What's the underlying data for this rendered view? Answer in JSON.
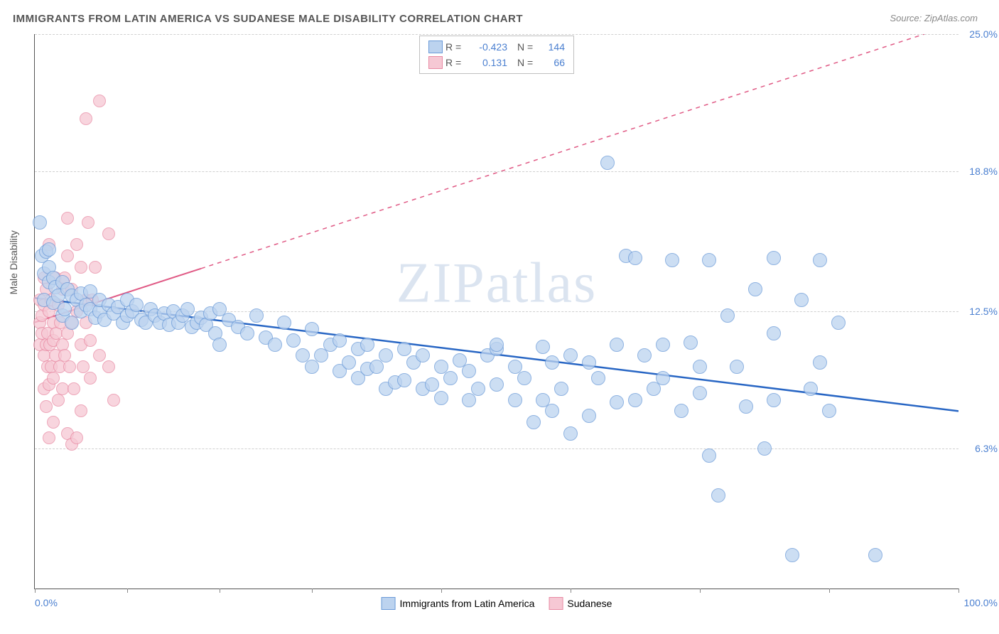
{
  "title": "IMMIGRANTS FROM LATIN AMERICA VS SUDANESE MALE DISABILITY CORRELATION CHART",
  "source": "Source: ZipAtlas.com",
  "watermark": "ZIPatlas",
  "ylabel": "Male Disability",
  "xaxis": {
    "min_label": "0.0%",
    "max_label": "100.0%",
    "min": 0,
    "max": 100,
    "tick_positions_pct": [
      0,
      10,
      20,
      30,
      44,
      58,
      72,
      86,
      100
    ]
  },
  "yaxis": {
    "min": 0,
    "max": 25,
    "ticks": [
      {
        "value": 6.3,
        "label": "6.3%"
      },
      {
        "value": 12.5,
        "label": "12.5%"
      },
      {
        "value": 18.8,
        "label": "18.8%"
      },
      {
        "value": 25.0,
        "label": "25.0%"
      }
    ]
  },
  "legend_box": {
    "rows": [
      {
        "swatch_fill": "#bcd3ef",
        "swatch_border": "#6a9ad8",
        "r_label": "R =",
        "r_value": "-0.423",
        "n_label": "N =",
        "n_value": "144"
      },
      {
        "swatch_fill": "#f6c8d4",
        "swatch_border": "#e88aa3",
        "r_label": "R =",
        "r_value": "0.131",
        "n_label": "N =",
        "n_value": "66"
      }
    ]
  },
  "legend_bottom": {
    "items": [
      {
        "swatch_fill": "#bcd3ef",
        "swatch_border": "#6a9ad8",
        "label": "Immigrants from Latin America"
      },
      {
        "swatch_fill": "#f6c8d4",
        "swatch_border": "#e88aa3",
        "label": "Sudanese"
      }
    ]
  },
  "series": {
    "blue": {
      "point_fill": "#bcd3ef",
      "point_border": "#6a9ad8",
      "point_radius": 9,
      "trend": {
        "y_at_x0": 13.1,
        "y_at_x100": 8.0,
        "solid_until_x": 100,
        "color": "#2866c4",
        "width": 2.5
      }
    },
    "pink": {
      "point_fill": "#f6c8d4",
      "point_border": "#e88aa3",
      "point_radius": 8,
      "trend": {
        "y_at_x0": 12.0,
        "y_at_x100": 25.5,
        "solid_until_x": 18,
        "color": "#e05a85",
        "width": 2
      }
    }
  },
  "grid_color": "#d0d0d0",
  "background_color": "#ffffff",
  "blue_points": [
    [
      0.5,
      16.5
    ],
    [
      0.8,
      15.0
    ],
    [
      1,
      14.2
    ],
    [
      1,
      13.0
    ],
    [
      1.2,
      15.2
    ],
    [
      1.5,
      14.5
    ],
    [
      1.5,
      15.3
    ],
    [
      1.5,
      13.8
    ],
    [
      2,
      14.0
    ],
    [
      2,
      12.9
    ],
    [
      2.2,
      13.6
    ],
    [
      2.5,
      13.2
    ],
    [
      3,
      12.3
    ],
    [
      3,
      13.8
    ],
    [
      3.2,
      12.6
    ],
    [
      3.5,
      13.5
    ],
    [
      4,
      12.0
    ],
    [
      4,
      13.2
    ],
    [
      4.5,
      13.0
    ],
    [
      5,
      12.5
    ],
    [
      5,
      13.3
    ],
    [
      5.5,
      12.8
    ],
    [
      6,
      12.6
    ],
    [
      6,
      13.4
    ],
    [
      6.5,
      12.2
    ],
    [
      7,
      12.5
    ],
    [
      7,
      13.0
    ],
    [
      7.5,
      12.1
    ],
    [
      8,
      12.8
    ],
    [
      8.5,
      12.4
    ],
    [
      9,
      12.7
    ],
    [
      9.5,
      12.0
    ],
    [
      10,
      12.3
    ],
    [
      10,
      13.0
    ],
    [
      10.5,
      12.5
    ],
    [
      11,
      12.8
    ],
    [
      11.5,
      12.1
    ],
    [
      12,
      12.0
    ],
    [
      12.5,
      12.6
    ],
    [
      13,
      12.3
    ],
    [
      13.5,
      12.0
    ],
    [
      14,
      12.4
    ],
    [
      14.5,
      11.9
    ],
    [
      15,
      12.5
    ],
    [
      15.5,
      12.0
    ],
    [
      16,
      12.3
    ],
    [
      16.5,
      12.6
    ],
    [
      17,
      11.8
    ],
    [
      17.5,
      12.0
    ],
    [
      18,
      12.2
    ],
    [
      18.5,
      11.9
    ],
    [
      19,
      12.4
    ],
    [
      19.5,
      11.5
    ],
    [
      20,
      11.0
    ],
    [
      20,
      12.6
    ],
    [
      21,
      12.1
    ],
    [
      22,
      11.8
    ],
    [
      23,
      11.5
    ],
    [
      24,
      12.3
    ],
    [
      25,
      11.3
    ],
    [
      26,
      11.0
    ],
    [
      27,
      12.0
    ],
    [
      28,
      11.2
    ],
    [
      29,
      10.5
    ],
    [
      30,
      11.7
    ],
    [
      30,
      10.0
    ],
    [
      31,
      10.5
    ],
    [
      32,
      11.0
    ],
    [
      33,
      9.8
    ],
    [
      33,
      11.2
    ],
    [
      34,
      10.2
    ],
    [
      35,
      10.8
    ],
    [
      35,
      9.5
    ],
    [
      36,
      9.9
    ],
    [
      36,
      11.0
    ],
    [
      37,
      10.0
    ],
    [
      38,
      9.0
    ],
    [
      38,
      10.5
    ],
    [
      39,
      9.3
    ],
    [
      40,
      10.8
    ],
    [
      40,
      9.4
    ],
    [
      41,
      10.2
    ],
    [
      42,
      9.0
    ],
    [
      42,
      10.5
    ],
    [
      43,
      9.2
    ],
    [
      44,
      10.0
    ],
    [
      44,
      8.6
    ],
    [
      45,
      9.5
    ],
    [
      46,
      10.3
    ],
    [
      47,
      9.8
    ],
    [
      47,
      8.5
    ],
    [
      48,
      9.0
    ],
    [
      49,
      10.5
    ],
    [
      50,
      9.2
    ],
    [
      50,
      10.8
    ],
    [
      52,
      10.0
    ],
    [
      53,
      9.5
    ],
    [
      54,
      7.5
    ],
    [
      55,
      10.9
    ],
    [
      56,
      10.2
    ],
    [
      56,
      8.0
    ],
    [
      57,
      9.0
    ],
    [
      58,
      10.5
    ],
    [
      58,
      7.0
    ],
    [
      60,
      10.2
    ],
    [
      61,
      9.5
    ],
    [
      62,
      19.2
    ],
    [
      63,
      11.0
    ],
    [
      63,
      8.4
    ],
    [
      64,
      15.0
    ],
    [
      65,
      14.9
    ],
    [
      66,
      10.5
    ],
    [
      67,
      9.0
    ],
    [
      68,
      11.0
    ],
    [
      69,
      14.8
    ],
    [
      70,
      8.0
    ],
    [
      71,
      11.1
    ],
    [
      72,
      10.0
    ],
    [
      72,
      8.8
    ],
    [
      73,
      14.8
    ],
    [
      73,
      6.0
    ],
    [
      74,
      4.2
    ],
    [
      75,
      12.3
    ],
    [
      76,
      10.0
    ],
    [
      77,
      8.2
    ],
    [
      78,
      13.5
    ],
    [
      79,
      6.3
    ],
    [
      80,
      14.9
    ],
    [
      80,
      8.5
    ],
    [
      82,
      1.5
    ],
    [
      83,
      13.0
    ],
    [
      84,
      9.0
    ],
    [
      85,
      14.8
    ],
    [
      85,
      10.2
    ],
    [
      86,
      8.0
    ],
    [
      87,
      12.0
    ],
    [
      91,
      1.5
    ],
    [
      80,
      11.5
    ],
    [
      65,
      8.5
    ],
    [
      68,
      9.5
    ],
    [
      55,
      8.5
    ],
    [
      60,
      7.8
    ],
    [
      50,
      11.0
    ],
    [
      52,
      8.5
    ]
  ],
  "pink_points": [
    [
      0.5,
      12.0
    ],
    [
      0.5,
      11.0
    ],
    [
      0.5,
      13.0
    ],
    [
      0.8,
      12.3
    ],
    [
      0.8,
      11.5
    ],
    [
      1,
      10.5
    ],
    [
      1,
      12.8
    ],
    [
      1,
      14.0
    ],
    [
      1,
      9.0
    ],
    [
      1.2,
      11.0
    ],
    [
      1.2,
      13.5
    ],
    [
      1.2,
      8.2
    ],
    [
      1.4,
      11.5
    ],
    [
      1.4,
      10.0
    ],
    [
      1.5,
      12.5
    ],
    [
      1.5,
      15.5
    ],
    [
      1.5,
      9.2
    ],
    [
      1.6,
      11.0
    ],
    [
      1.8,
      10.0
    ],
    [
      1.8,
      13.0
    ],
    [
      2,
      11.2
    ],
    [
      2,
      9.5
    ],
    [
      2,
      12.0
    ],
    [
      2.2,
      14.0
    ],
    [
      2.2,
      10.5
    ],
    [
      2.3,
      11.5
    ],
    [
      2.5,
      12.8
    ],
    [
      2.5,
      8.5
    ],
    [
      2.7,
      10.0
    ],
    [
      2.8,
      12.0
    ],
    [
      3,
      11.0
    ],
    [
      3,
      13.5
    ],
    [
      3,
      9.0
    ],
    [
      3.2,
      10.5
    ],
    [
      3.2,
      14.0
    ],
    [
      3.5,
      11.5
    ],
    [
      3.5,
      15.0
    ],
    [
      3.5,
      7.0
    ],
    [
      3.8,
      10.0
    ],
    [
      4,
      12.0
    ],
    [
      4,
      13.5
    ],
    [
      4,
      6.5
    ],
    [
      4.2,
      9.0
    ],
    [
      4.5,
      12.5
    ],
    [
      4.5,
      15.5
    ],
    [
      4.5,
      6.8
    ],
    [
      5,
      11.0
    ],
    [
      5,
      14.5
    ],
    [
      5,
      8.0
    ],
    [
      5.2,
      10.0
    ],
    [
      5.5,
      13.0
    ],
    [
      5.5,
      12.0
    ],
    [
      5.8,
      16.5
    ],
    [
      6,
      9.5
    ],
    [
      6,
      11.2
    ],
    [
      6.2,
      13.0
    ],
    [
      6.5,
      14.5
    ],
    [
      7,
      10.5
    ],
    [
      7,
      22.0
    ],
    [
      8,
      16.0
    ],
    [
      8,
      10.0
    ],
    [
      8.5,
      8.5
    ],
    [
      5.5,
      21.2
    ],
    [
      3.5,
      16.7
    ],
    [
      1.5,
      6.8
    ],
    [
      2,
      7.5
    ]
  ]
}
